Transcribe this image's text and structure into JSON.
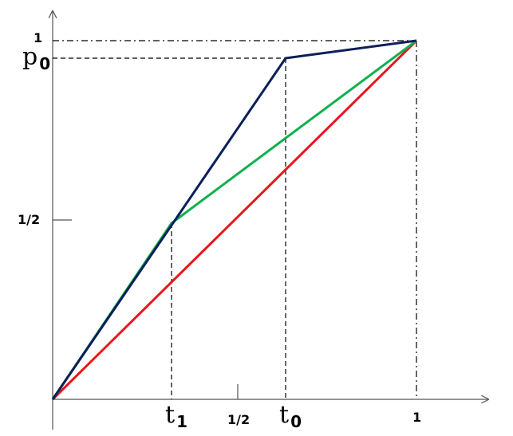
{
  "diagram": {
    "labels": {
      "y_one": "1",
      "y_p0": "p",
      "y_p0_sub": "0",
      "y_half": "1/2",
      "x_t1": "t",
      "x_t1_sub": "1",
      "x_half": "1/2",
      "x_t0": "t",
      "x_t0_sub": "0",
      "x_one": "1"
    },
    "colors": {
      "axis": "#555555",
      "guides": "#000000",
      "navy_curve": "#0b1f5a",
      "green_curve": "#10b050",
      "red_curve": "#e8161b"
    }
  }
}
